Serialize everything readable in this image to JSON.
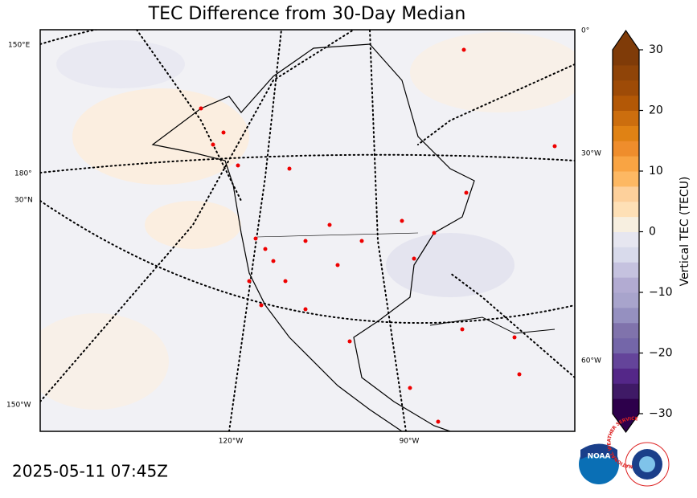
{
  "title": "TEC Difference from 30-Day Median",
  "timestamp": "2025-05-11 07:45Z",
  "map": {
    "graticule_labels": [
      "150°E",
      "180°",
      "30°N",
      "150°W",
      "0°",
      "30°W",
      "60°W",
      "120°W",
      "90°W"
    ]
  },
  "colorbar": {
    "label": "Vertical TEC (TECU)",
    "lim": [
      -30,
      30
    ],
    "ticks": [
      {
        "value": -30,
        "label": "−30"
      },
      {
        "value": -20,
        "label": "−20"
      },
      {
        "value": -10,
        "label": "−10"
      },
      0,
      10,
      20,
      30
    ],
    "colors": [
      "#2d004b",
      "#3f1a66",
      "#542788",
      "#64449a",
      "#7466a9",
      "#8073ac",
      "#9590c0",
      "#a8a4cc",
      "#b2abd2",
      "#c5c2df",
      "#d8daeb",
      "#e6e6f0",
      "#f7efe0",
      "#fee0b6",
      "#fdd09b",
      "#fdb863",
      "#f9a443",
      "#ef8d2c",
      "#e08214",
      "#cc6e0e",
      "#b35806",
      "#9e4b07",
      "#8f4408",
      "#7f3b08"
    ]
  },
  "logos": {
    "noaa": "NOAA",
    "nws": "NATIONAL WEATHER SERVICE"
  }
}
